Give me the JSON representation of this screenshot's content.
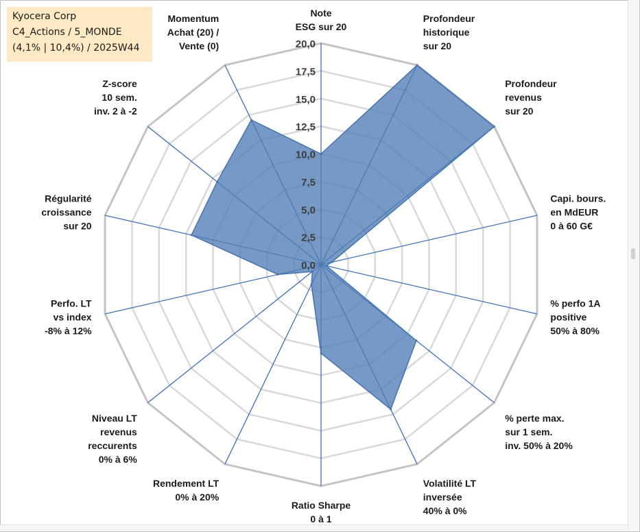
{
  "title_box": {
    "line1": "Kyocera Corp",
    "line2": "C4_Actions / 5_MONDE",
    "line3": "(4,1% | 10,4%) / 2025W44"
  },
  "colors": {
    "fill": "#4f7db5",
    "outline": "#4673ad",
    "spoke": "#3f6eb6",
    "grid_major": "#c4c4c4",
    "grid_minor": "#d8d8d8",
    "title_bg": "#fde9c3"
  },
  "chart_data": {
    "type": "radar",
    "rmin": 0,
    "rmax": 20,
    "tick_values": [
      0,
      2.5,
      5,
      7.5,
      10,
      12.5,
      15,
      17.5,
      20
    ],
    "tick_labels": [
      "0,0",
      "2,5",
      "5,0",
      "7,5",
      "10,0",
      "12,5",
      "15,0",
      "17,5",
      "20,0"
    ],
    "grid_levels": [
      2.5,
      5,
      7.5,
      10,
      12.5,
      15,
      17.5,
      20
    ],
    "axes": [
      {
        "label": [
          "Note",
          "ESG sur 20"
        ],
        "value": 10
      },
      {
        "label": [
          "Profondeur",
          "historique",
          "sur 20"
        ],
        "value": 20
      },
      {
        "label": [
          "Profondeur",
          "revenus",
          "sur 20"
        ],
        "value": 20
      },
      {
        "label": [
          "Capi. bours.",
          "en MdEUR",
          "0 à 60 G€"
        ],
        "value": 1
      },
      {
        "label": [
          "% perfo 1A",
          "positive",
          "50% à 80%"
        ],
        "value": 0.5
      },
      {
        "label": [
          "% perte max.",
          "sur 1 sem.",
          "inv. 50% à 20%"
        ],
        "value": 11
      },
      {
        "label": [
          "Volatilité LT",
          "inversée",
          "40% à 0%"
        ],
        "value": 14.5
      },
      {
        "label": [
          "Ratio Sharpe",
          "0 à 1"
        ],
        "value": 8
      },
      {
        "label": [
          "Rendement LT",
          "0% à 20%"
        ],
        "value": 2
      },
      {
        "label": [
          "Niveau LT",
          "revenus",
          "reccurents",
          "0% à 6%"
        ],
        "value": 1
      },
      {
        "label": [
          "Perfo. LT",
          "vs index",
          "-8% à 12%"
        ],
        "value": 4
      },
      {
        "label": [
          "Régularité",
          "croissance",
          "sur 20"
        ],
        "value": 12
      },
      {
        "label": [
          "Z-score",
          "10 sem.",
          "inv. 2 à -2"
        ],
        "value": 12
      },
      {
        "label": [
          "Momentum",
          "Achat (20) /",
          "Vente (0)"
        ],
        "value": 14.5
      }
    ]
  }
}
